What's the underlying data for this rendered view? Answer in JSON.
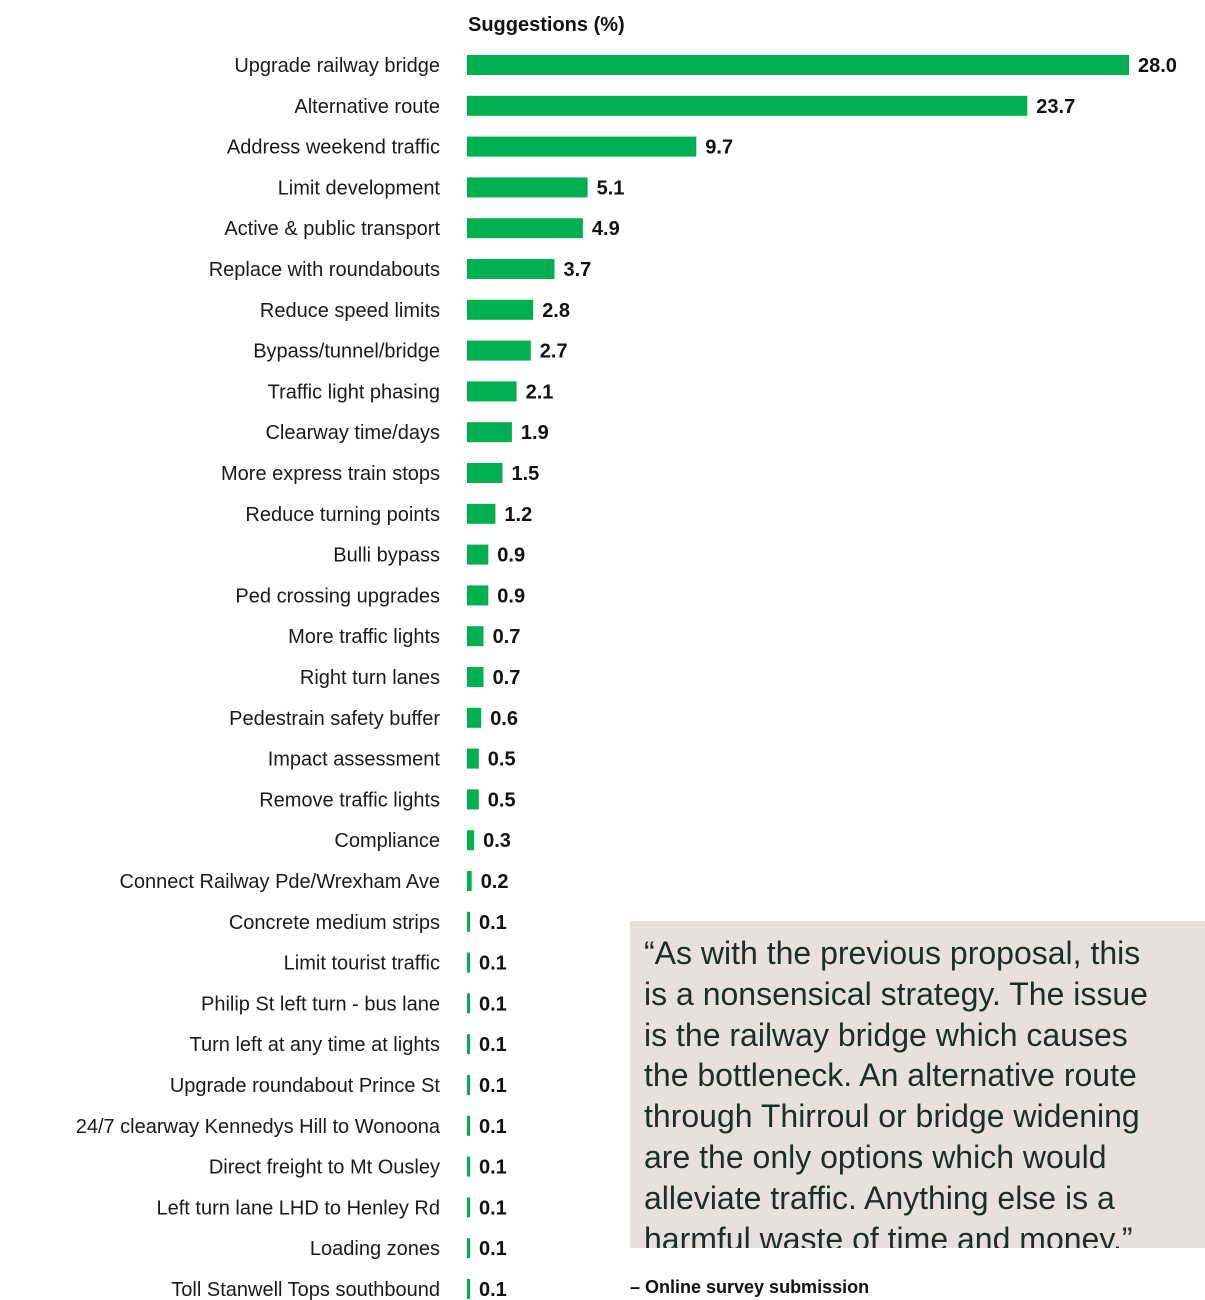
{
  "chart_data": {
    "type": "bar",
    "orientation": "horizontal",
    "title": "Suggestions (%)",
    "bar_color": "#00b050",
    "categories": [
      "Upgrade railway bridge",
      "Alternative route",
      "Address weekend traffic",
      "Limit development",
      "Active & public transport",
      "Replace with roundabouts",
      "Reduce speed limits",
      "Bypass/tunnel/bridge",
      "Traffic light phasing",
      "Clearway time/days",
      "More express train stops",
      "Reduce turning points",
      "Bulli bypass",
      "Ped crossing upgrades",
      "More traffic lights",
      "Right turn lanes",
      "Pedestrain safety buffer",
      "Impact assessment",
      "Remove traffic lights",
      "Compliance",
      "Connect Railway Pde/Wrexham Ave",
      "Concrete medium strips",
      "Limit tourist traffic",
      "Philip St left turn - bus lane",
      "Turn left at any time at lights",
      "Upgrade roundabout Prince St",
      "24/7 clearway Kennedys Hill to Wonoona",
      "Direct freight to Mt Ousley",
      "Left turn lane LHD to Henley Rd",
      "Loading zones",
      "Toll Stanwell Tops southbound"
    ],
    "values": [
      28.0,
      23.7,
      9.7,
      5.1,
      4.9,
      3.7,
      2.8,
      2.7,
      2.1,
      1.9,
      1.5,
      1.2,
      0.9,
      0.9,
      0.7,
      0.7,
      0.6,
      0.5,
      0.5,
      0.3,
      0.2,
      0.1,
      0.1,
      0.1,
      0.1,
      0.1,
      0.1,
      0.1,
      0.1,
      0.1,
      0.1
    ],
    "value_labels": [
      "28.0",
      "23.7",
      "9.7",
      "5.1",
      "4.9",
      "3.7",
      "2.8",
      "2.7",
      "2.1",
      "1.9",
      "1.5",
      "1.2",
      "0.9",
      "0.9",
      "0.7",
      "0.7",
      "0.6",
      "0.5",
      "0.5",
      "0.3",
      "0.2",
      "0.1",
      "0.1",
      "0.1",
      "0.1",
      "0.1",
      "0.1",
      "0.1",
      "0.1",
      "0.1",
      "0.1"
    ],
    "xlim": [
      0,
      28.0
    ],
    "grid": false,
    "legend": "none"
  },
  "quote": {
    "text": "“As with the previous proposal, this\nis a nonsensical strategy. The issue\nis the railway bridge which causes\nthe bottleneck. An alternative route\nthrough Thirroul or bridge widening\nare the only options which would\nalleviate traffic. Anything else is a\nharmful waste of time and money.”",
    "source": "– Online survey submission"
  }
}
